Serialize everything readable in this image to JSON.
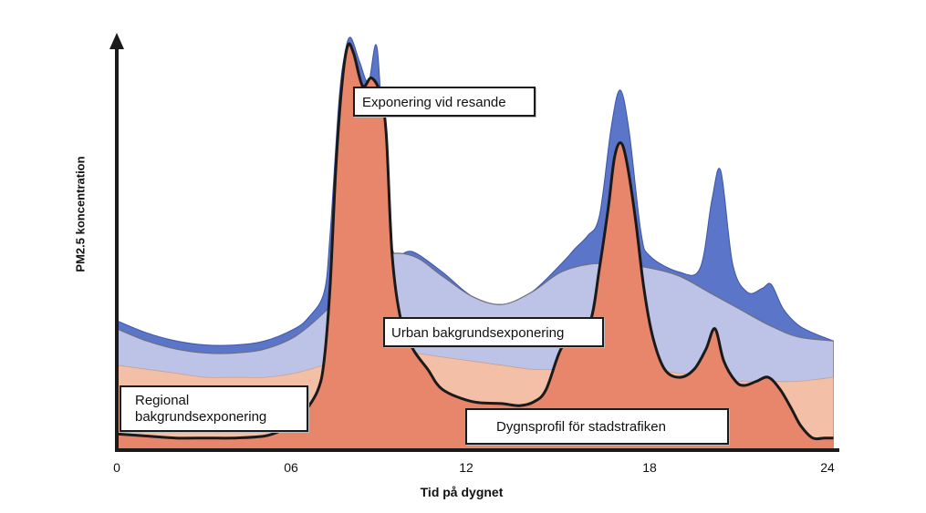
{
  "chart_data": {
    "type": "area",
    "title": "",
    "xlabel": "Tid på dygnet",
    "ylabel": "PM2.5 koncentration",
    "xlim": [
      0,
      24.4
    ],
    "ylim": [
      0,
      100
    ],
    "tick_labels": [
      "0",
      "06",
      "12",
      "18",
      "24"
    ],
    "tick_values": [
      0,
      6,
      12,
      18,
      24
    ],
    "colors": {
      "regional": "#f3bfa6",
      "urban": "#bcc3e6",
      "exposure": "#5b75c9",
      "traffic": "#e8866b",
      "outline": "#1a1a1a"
    },
    "series": [
      {
        "name": "Exponering vid resande",
        "x": [
          0,
          1,
          2,
          3,
          4,
          5,
          6,
          6.5,
          7,
          7.2,
          7.5,
          7.7,
          7.9,
          8.2,
          8.5,
          8.8,
          9.1,
          9.3,
          9.5,
          10,
          11,
          12,
          13,
          14,
          15,
          15.5,
          15.9,
          16.3,
          16.7,
          17,
          17.3,
          17.7,
          18.0,
          19,
          19.7,
          20.1,
          20.4,
          20.8,
          21.3,
          21.8,
          22.1,
          22.5,
          23,
          23.5,
          24.2
        ],
        "values": [
          32,
          29,
          27,
          26,
          26,
          27,
          30,
          33,
          39,
          53,
          86,
          98,
          102,
          96,
          91,
          99,
          60,
          50,
          48,
          49,
          44,
          38,
          36,
          39,
          46,
          50,
          53,
          58,
          80,
          89,
          79,
          54,
          48,
          44,
          45,
          62,
          69,
          46,
          39,
          40,
          41,
          35,
          31,
          29,
          27
        ]
      },
      {
        "name": "Urban bakgrundsexponering",
        "x": [
          0,
          1,
          2,
          3,
          4,
          5,
          6,
          7,
          8,
          9,
          10,
          11,
          12,
          13,
          14,
          15,
          16,
          17,
          18,
          19,
          20,
          21,
          22,
          23,
          24.2
        ],
        "values": [
          30,
          27,
          25,
          24,
          24,
          25,
          28,
          34,
          42,
          48,
          48,
          43,
          38,
          36,
          39,
          44,
          46,
          46,
          45,
          43,
          39,
          35,
          31,
          28,
          27
        ]
      },
      {
        "name": "Regional bakgrundsexponering",
        "x": [
          0,
          1,
          2,
          3,
          4,
          5,
          6,
          7,
          8,
          9,
          10,
          11,
          12,
          13,
          14,
          15,
          16,
          17,
          18,
          19,
          20,
          21,
          22,
          23,
          24.2
        ],
        "values": [
          21,
          20,
          19,
          18,
          18,
          18,
          19,
          21,
          23,
          24,
          24,
          23,
          22,
          21,
          20,
          20,
          20,
          20,
          20,
          19,
          18,
          17,
          17,
          17,
          18
        ]
      },
      {
        "name": "Dygnsprofil för stadstrafiken",
        "x": [
          0,
          1,
          2,
          3,
          4,
          5,
          5.6,
          6,
          6.4,
          6.8,
          7.0,
          7.2,
          7.4,
          7.6,
          7.8,
          8.0,
          8.3,
          8.6,
          8.9,
          9.1,
          9.3,
          9.6,
          10,
          10.5,
          11,
          12,
          13,
          13.6,
          14.1,
          14.5,
          15,
          15.5,
          16,
          16.3,
          16.6,
          16.8,
          17.0,
          17.2,
          17.5,
          17.8,
          18.1,
          18.5,
          19,
          19.5,
          19.9,
          20.2,
          20.5,
          20.9,
          21.2,
          21.6,
          22.0,
          22.4,
          22.8,
          23.1,
          23.5,
          23.9,
          24.2
        ],
        "values": [
          4,
          3.5,
          3,
          3,
          3,
          3.5,
          5,
          7,
          10,
          15,
          22,
          40,
          70,
          90,
          100,
          98,
          90,
          92,
          88,
          78,
          48,
          32,
          25,
          20,
          15,
          12,
          11.5,
          11,
          12,
          15,
          25,
          28,
          32,
          45,
          60,
          72,
          76,
          72,
          58,
          40,
          28,
          20,
          18,
          20,
          25,
          30,
          22,
          17,
          16,
          17,
          18,
          15,
          10,
          6,
          3,
          3,
          3
        ]
      }
    ],
    "annotations": [
      {
        "text": "Exponering vid resande",
        "at": "morning rush peak"
      },
      {
        "text": "Urban bakgrundsexponering",
        "at": "mid-day"
      },
      {
        "text": "Regional bakgrundsexponering",
        "at": "early morning"
      },
      {
        "text": "Dygnsprofil för stadstrafiken",
        "at": "evening"
      }
    ]
  },
  "labels": {
    "exposure_box": "Exponering vid resande",
    "urban_box": "Urban bakgrundsexponering",
    "regional_box_line1": "Regional",
    "regional_box_line2": "bakgrundsexponering",
    "traffic_box": "Dygnsprofil för stadstrafiken"
  }
}
